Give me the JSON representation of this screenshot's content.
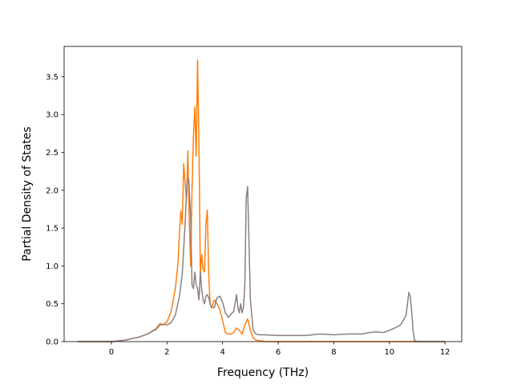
{
  "chart_data": {
    "type": "line",
    "xlabel": "Frequency (THz)",
    "ylabel": "Partial Density of States",
    "xlim": [
      -1.7,
      12.6
    ],
    "ylim": [
      0,
      3.9
    ],
    "xticks": [
      0,
      2,
      4,
      6,
      8,
      10,
      12
    ],
    "yticks": [
      0.0,
      0.5,
      1.0,
      1.5,
      2.0,
      2.5,
      3.0,
      3.5
    ],
    "xtick_labels": [
      "0",
      "2",
      "4",
      "6",
      "8",
      "10",
      "12"
    ],
    "ytick_labels": [
      "0.0",
      "0.5",
      "1.0",
      "1.5",
      "2.0",
      "2.5",
      "3.0",
      "3.5"
    ],
    "grid": false,
    "legend": "none",
    "series": [
      {
        "color": "#ff7f0e",
        "x": [
          -1.2,
          -0.2,
          0.0,
          0.5,
          1.0,
          1.3,
          1.6,
          1.75,
          1.85,
          2.0,
          2.15,
          2.3,
          2.4,
          2.45,
          2.5,
          2.55,
          2.6,
          2.65,
          2.7,
          2.75,
          2.8,
          2.85,
          2.9,
          2.95,
          3.0,
          3.05,
          3.1,
          3.15,
          3.2,
          3.25,
          3.3,
          3.35,
          3.4,
          3.45,
          3.5,
          3.55,
          3.6,
          3.65,
          3.7,
          3.8,
          3.9,
          4.0,
          4.1,
          4.2,
          4.3,
          4.4,
          4.5,
          4.6,
          4.7,
          4.8,
          4.9,
          5.0,
          5.1,
          5.2,
          5.5,
          7.0,
          9.0,
          12.0
        ],
        "y": [
          0.0,
          0.0,
          0.0,
          0.02,
          0.06,
          0.1,
          0.17,
          0.24,
          0.22,
          0.26,
          0.4,
          0.7,
          1.05,
          1.45,
          1.73,
          1.55,
          2.35,
          2.1,
          1.85,
          2.52,
          1.6,
          1.0,
          2.0,
          2.7,
          3.1,
          2.45,
          3.72,
          2.6,
          0.9,
          1.15,
          0.95,
          0.92,
          1.55,
          1.74,
          0.9,
          0.5,
          0.45,
          0.5,
          0.55,
          0.5,
          0.42,
          0.28,
          0.12,
          0.1,
          0.1,
          0.12,
          0.18,
          0.15,
          0.1,
          0.22,
          0.3,
          0.15,
          0.05,
          0.02,
          0.0,
          0.0,
          0.0,
          0.0
        ]
      },
      {
        "color": "#8c7f82",
        "x": [
          -1.2,
          -0.2,
          0.0,
          0.5,
          1.0,
          1.3,
          1.6,
          1.75,
          1.85,
          2.0,
          2.15,
          2.3,
          2.45,
          2.55,
          2.65,
          2.72,
          2.78,
          2.85,
          2.9,
          2.95,
          3.0,
          3.05,
          3.1,
          3.15,
          3.2,
          3.25,
          3.3,
          3.35,
          3.4,
          3.45,
          3.5,
          3.55,
          3.6,
          3.7,
          3.8,
          3.9,
          4.0,
          4.1,
          4.2,
          4.3,
          4.4,
          4.5,
          4.55,
          4.6,
          4.65,
          4.7,
          4.75,
          4.8,
          4.85,
          4.9,
          4.95,
          5.0,
          5.05,
          5.1,
          5.2,
          5.3,
          5.5,
          6.0,
          6.5,
          7.0,
          7.5,
          8.0,
          8.5,
          9.0,
          9.3,
          9.5,
          9.8,
          10.0,
          10.2,
          10.3,
          10.4,
          10.5,
          10.6,
          10.65,
          10.7,
          10.75,
          10.8,
          10.85,
          10.9,
          11.0,
          12.0
        ],
        "y": [
          0.0,
          0.0,
          0.0,
          0.02,
          0.06,
          0.1,
          0.16,
          0.22,
          0.23,
          0.22,
          0.25,
          0.35,
          0.6,
          0.9,
          1.55,
          2.1,
          2.15,
          1.65,
          0.75,
          0.7,
          0.92,
          0.75,
          0.7,
          0.55,
          0.92,
          0.68,
          0.55,
          0.5,
          0.6,
          0.62,
          0.58,
          0.5,
          0.45,
          0.45,
          0.58,
          0.6,
          0.52,
          0.38,
          0.32,
          0.36,
          0.4,
          0.62,
          0.45,
          0.38,
          0.5,
          0.38,
          0.45,
          0.75,
          1.9,
          2.05,
          1.3,
          0.55,
          0.35,
          0.15,
          0.1,
          0.09,
          0.09,
          0.08,
          0.08,
          0.08,
          0.1,
          0.09,
          0.1,
          0.1,
          0.12,
          0.13,
          0.12,
          0.15,
          0.18,
          0.2,
          0.22,
          0.28,
          0.35,
          0.5,
          0.65,
          0.6,
          0.4,
          0.15,
          0.02,
          0.0,
          0.0
        ]
      }
    ]
  }
}
